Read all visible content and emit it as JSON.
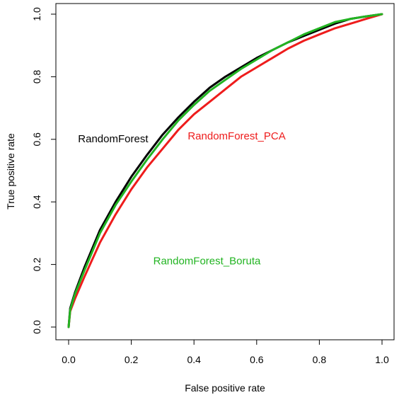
{
  "chart_data": {
    "type": "line",
    "title": "",
    "xlabel": "False positive rate",
    "ylabel": "True positive rate",
    "xlim": [
      0,
      1
    ],
    "ylim": [
      0,
      1
    ],
    "xticks": [
      "0.0",
      "0.2",
      "0.4",
      "0.6",
      "0.8",
      "1.0"
    ],
    "yticks": [
      "0.0",
      "0.2",
      "0.4",
      "0.6",
      "0.8",
      "1.0"
    ],
    "grid": false,
    "legend": "inline labels",
    "series": [
      {
        "name": "RandomForest",
        "color": "#000000",
        "points": [
          [
            0.0,
            0.0
          ],
          [
            0.005,
            0.06
          ],
          [
            0.02,
            0.11
          ],
          [
            0.05,
            0.19
          ],
          [
            0.1,
            0.31
          ],
          [
            0.15,
            0.4
          ],
          [
            0.2,
            0.48
          ],
          [
            0.25,
            0.55
          ],
          [
            0.3,
            0.615
          ],
          [
            0.35,
            0.67
          ],
          [
            0.4,
            0.72
          ],
          [
            0.45,
            0.765
          ],
          [
            0.5,
            0.8
          ],
          [
            0.55,
            0.83
          ],
          [
            0.6,
            0.86
          ],
          [
            0.65,
            0.885
          ],
          [
            0.7,
            0.91
          ],
          [
            0.75,
            0.93
          ],
          [
            0.8,
            0.95
          ],
          [
            0.85,
            0.97
          ],
          [
            0.9,
            0.985
          ],
          [
            0.95,
            0.993
          ],
          [
            1.0,
            1.0
          ]
        ]
      },
      {
        "name": "RandomForest_PCA",
        "color": "#ee1c1c",
        "points": [
          [
            0.0,
            0.0
          ],
          [
            0.005,
            0.05
          ],
          [
            0.02,
            0.09
          ],
          [
            0.05,
            0.16
          ],
          [
            0.1,
            0.27
          ],
          [
            0.15,
            0.36
          ],
          [
            0.2,
            0.44
          ],
          [
            0.25,
            0.51
          ],
          [
            0.3,
            0.57
          ],
          [
            0.35,
            0.63
          ],
          [
            0.4,
            0.68
          ],
          [
            0.45,
            0.72
          ],
          [
            0.5,
            0.76
          ],
          [
            0.55,
            0.8
          ],
          [
            0.6,
            0.83
          ],
          [
            0.65,
            0.86
          ],
          [
            0.7,
            0.89
          ],
          [
            0.75,
            0.915
          ],
          [
            0.8,
            0.935
          ],
          [
            0.85,
            0.955
          ],
          [
            0.9,
            0.97
          ],
          [
            0.95,
            0.985
          ],
          [
            1.0,
            1.0
          ]
        ]
      },
      {
        "name": "RandomForest_Boruta",
        "color": "#22b422",
        "points": [
          [
            0.0,
            0.0
          ],
          [
            0.005,
            0.055
          ],
          [
            0.02,
            0.105
          ],
          [
            0.05,
            0.18
          ],
          [
            0.1,
            0.3
          ],
          [
            0.15,
            0.39
          ],
          [
            0.2,
            0.465
          ],
          [
            0.25,
            0.535
          ],
          [
            0.3,
            0.6
          ],
          [
            0.35,
            0.66
          ],
          [
            0.4,
            0.71
          ],
          [
            0.45,
            0.755
          ],
          [
            0.5,
            0.79
          ],
          [
            0.55,
            0.825
          ],
          [
            0.6,
            0.855
          ],
          [
            0.65,
            0.885
          ],
          [
            0.7,
            0.91
          ],
          [
            0.75,
            0.935
          ],
          [
            0.8,
            0.955
          ],
          [
            0.85,
            0.975
          ],
          [
            0.9,
            0.985
          ],
          [
            0.95,
            0.993
          ],
          [
            1.0,
            1.0
          ]
        ]
      }
    ],
    "labels": [
      {
        "text": "RandomForest",
        "x": 0.03,
        "y": 0.59,
        "color": "#000000"
      },
      {
        "text": "RandomForest_PCA",
        "x": 0.38,
        "y": 0.6,
        "color": "#ee1c1c"
      },
      {
        "text": "RandomForest_Boruta",
        "x": 0.27,
        "y": 0.2,
        "color": "#22b422"
      }
    ]
  }
}
